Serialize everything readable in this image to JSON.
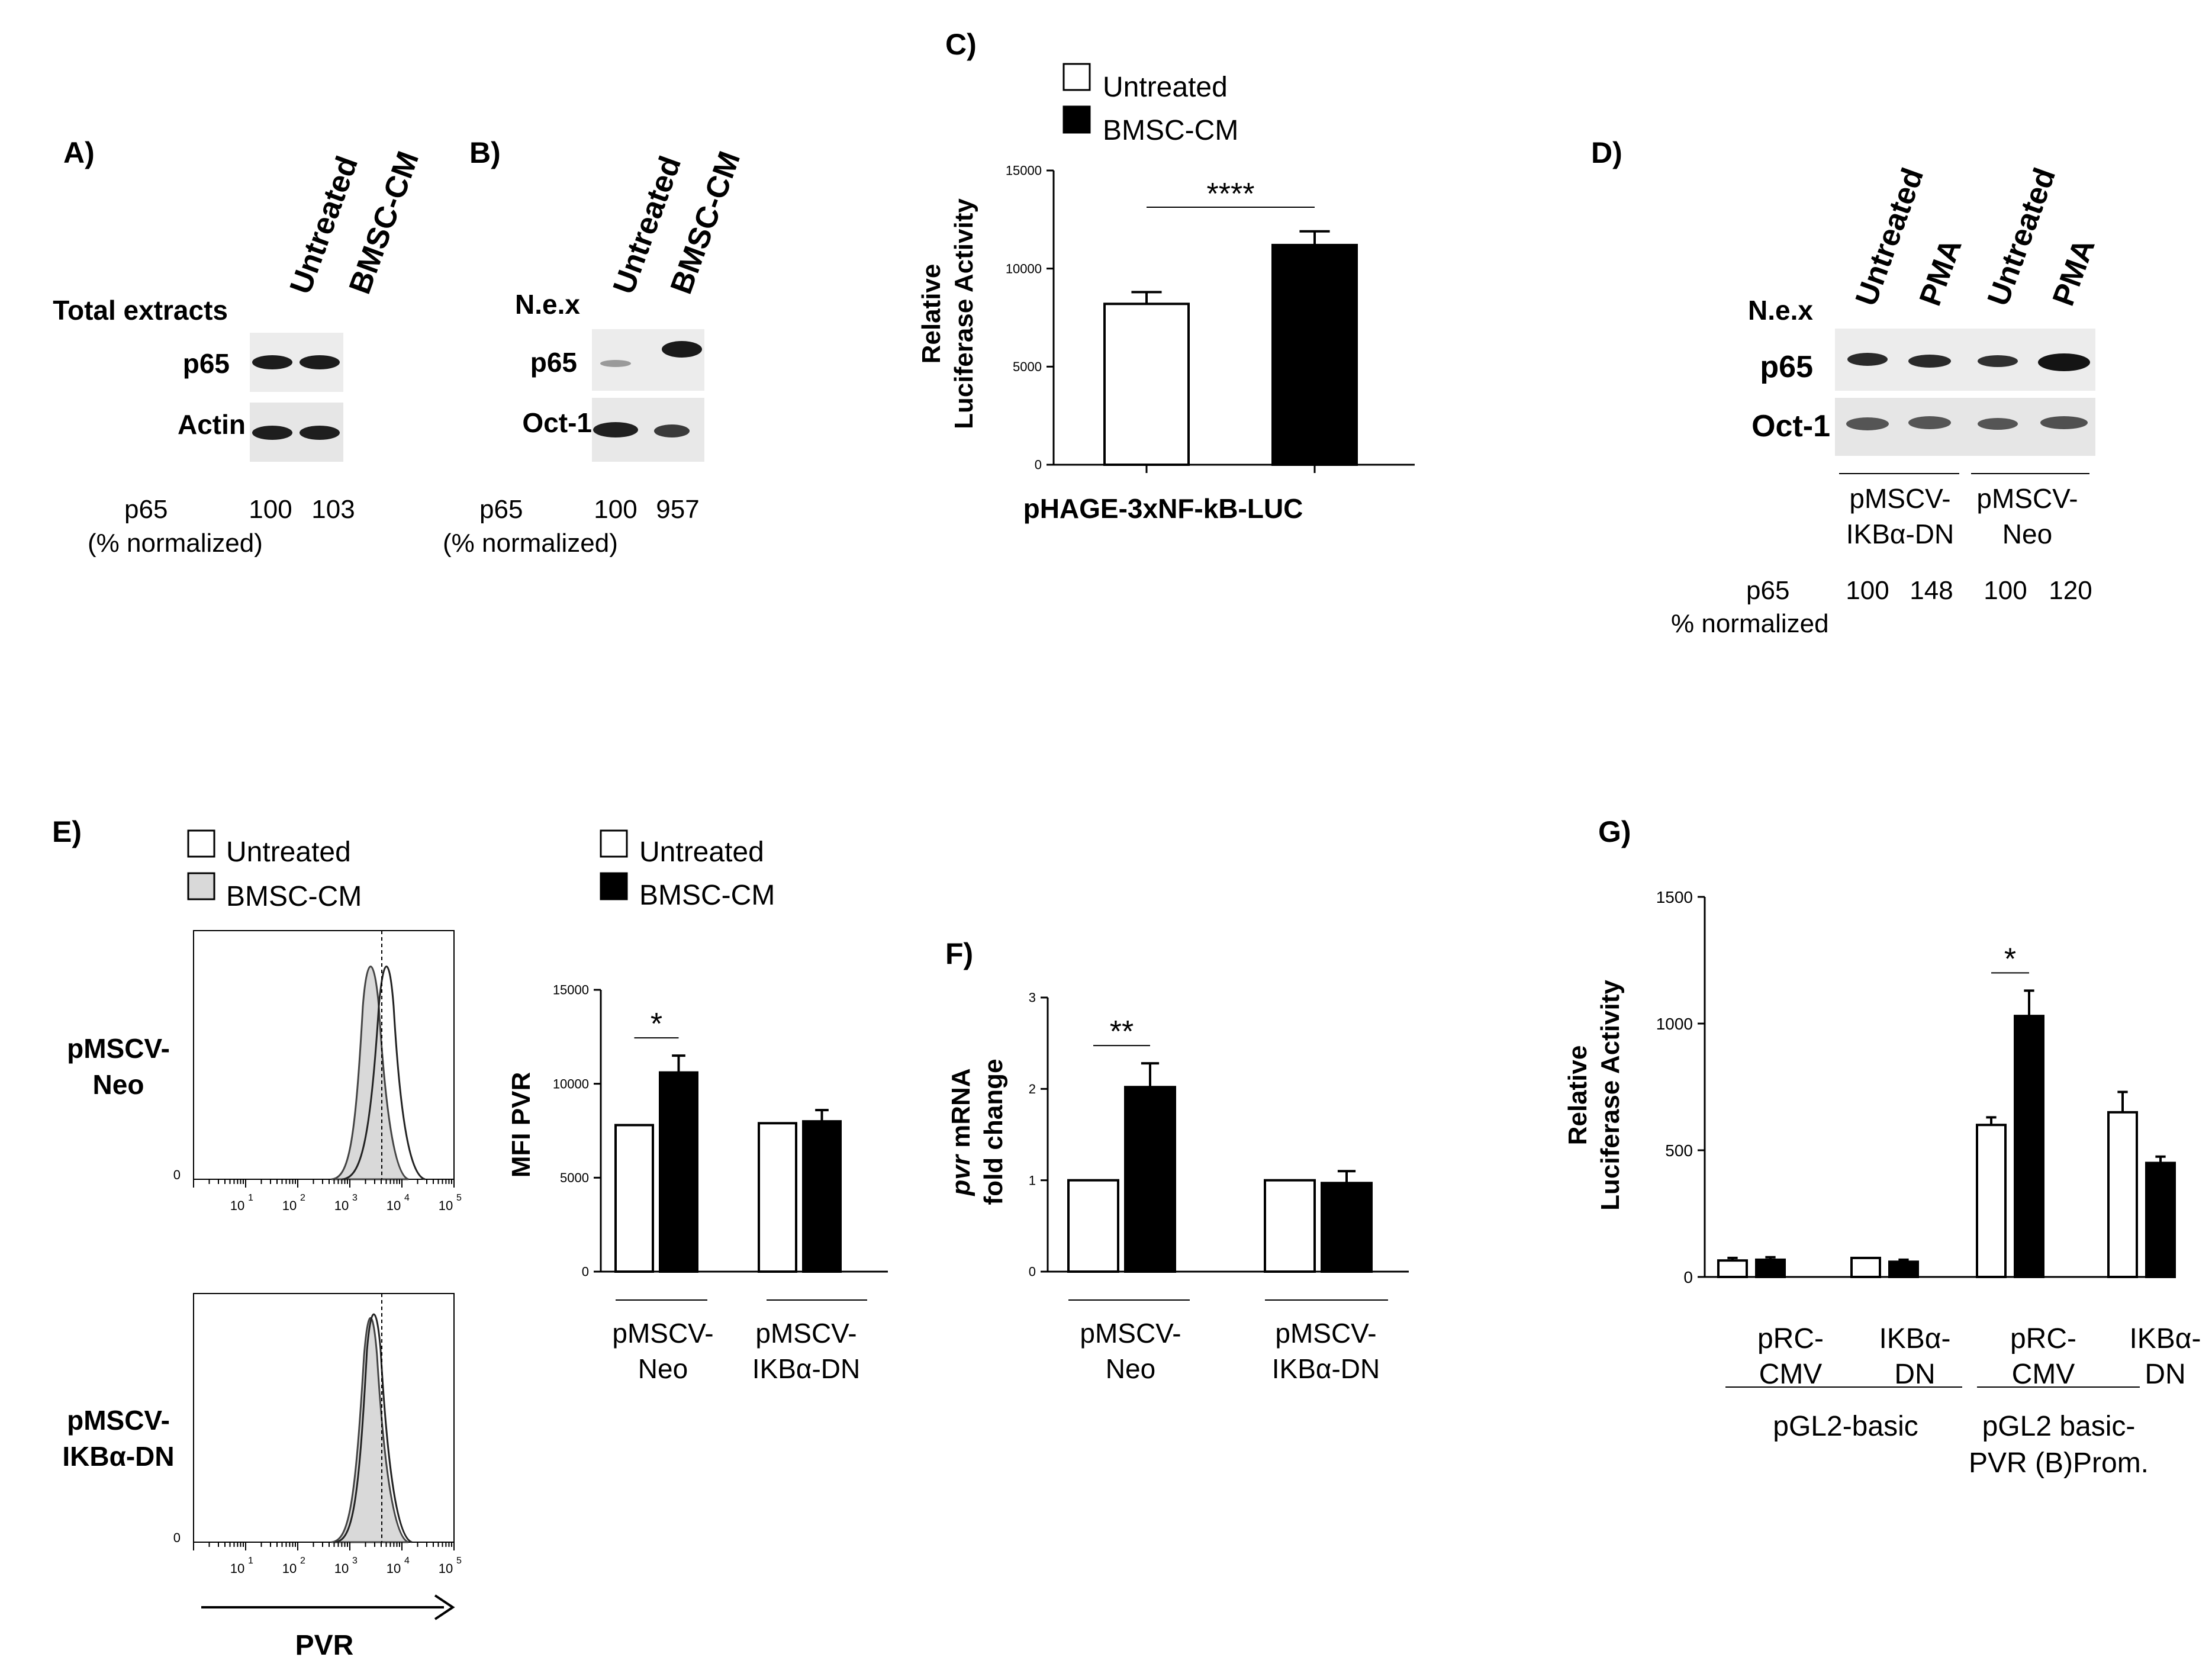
{
  "panels": {
    "A": {
      "letter": "A)",
      "header": "Total extracts",
      "lanes": [
        "Untreated",
        "BMSC-CM"
      ],
      "rows": [
        "p65",
        "Actin"
      ],
      "quant_label": "p65",
      "quant_sub": "(% normalized)",
      "quant_values": [
        "100",
        "103"
      ]
    },
    "B": {
      "letter": "B)",
      "header": "N.e.x",
      "lanes": [
        "Untreated",
        "BMSC-CM"
      ],
      "rows": [
        "p65",
        "Oct-1"
      ],
      "quant_label": "p65",
      "quant_sub": "(% normalized)",
      "quant_values": [
        "100",
        "957"
      ]
    },
    "C": {
      "letter": "C)"
    },
    "D": {
      "letter": "D)",
      "header": "N.e.x",
      "lanes": [
        "Untreated",
        "PMA",
        "Untreated",
        "PMA"
      ],
      "rows": [
        "p65",
        "Oct-1"
      ],
      "groups": [
        {
          "line1": "pMSCV-",
          "line2": "IKBα-DN"
        },
        {
          "line1": "pMSCV-",
          "line2": "Neo"
        }
      ],
      "quant_label": "p65",
      "quant_sub": "% normalized",
      "quant_values": [
        "100",
        "148",
        "100",
        "120"
      ]
    },
    "E": {
      "letter": "E)",
      "hist_legend": [
        "Untreated",
        "BMSC-CM"
      ],
      "hist_rows": [
        {
          "line1": "pMSCV-",
          "line2": "Neo"
        },
        {
          "line1": "pMSCV-",
          "line2": "IKBα-DN"
        }
      ],
      "hist_x_ticks": [
        "0",
        "1",
        "2",
        "3",
        "4",
        "5"
      ],
      "hist_x_base": "10",
      "hist_y_zero": "0",
      "hist_xlabel": "PVR"
    },
    "F": {
      "letter": "F)"
    },
    "G": {
      "letter": "G)"
    }
  },
  "colors": {
    "bar_untreated": "#ffffff",
    "bar_bmsc": "#000000",
    "hist_fill": "#d9d9d9"
  },
  "chart_data": [
    {
      "panel": "C",
      "type": "bar",
      "legend": [
        "Untreated",
        "BMSC-CM"
      ],
      "ylabel": [
        "Relative",
        "Luciferase Activity"
      ],
      "ylim": [
        0,
        15000
      ],
      "yticks": [
        0,
        5000,
        10000,
        15000
      ],
      "categories": [
        "Untreated",
        "BMSC-CM"
      ],
      "values": [
        8200,
        11200
      ],
      "errors": [
        600,
        700
      ],
      "xlabel": "pHAGE-3xNF-kB-LUC",
      "significance": "****"
    },
    {
      "panel": "E2",
      "type": "bar",
      "legend": [
        "Untreated",
        "BMSC-CM"
      ],
      "ylabel": "MFI  PVR",
      "ylim": [
        0,
        15000
      ],
      "yticks": [
        0,
        5000,
        10000,
        15000
      ],
      "groups": [
        {
          "line1": "pMSCV-",
          "line2": "Neo"
        },
        {
          "line1": "pMSCV-",
          "line2": "IKBα-DN"
        }
      ],
      "series": [
        {
          "name": "Untreated",
          "values": [
            7800,
            7900
          ],
          "errors": [
            0,
            0
          ]
        },
        {
          "name": "BMSC-CM",
          "values": [
            10600,
            8000
          ],
          "errors": [
            900,
            600
          ]
        }
      ],
      "significance": [
        "*",
        ""
      ]
    },
    {
      "panel": "F",
      "type": "bar",
      "ylabel_italic": "pvr",
      "ylabel_rest": " mRNA",
      "ylabel2": "fold change",
      "ylim": [
        0,
        3
      ],
      "yticks": [
        0,
        1,
        2,
        3
      ],
      "groups": [
        {
          "line1": "pMSCV-",
          "line2": "Neo"
        },
        {
          "line1": "pMSCV-",
          "line2": "IKBα-DN"
        }
      ],
      "series": [
        {
          "name": "Untreated",
          "values": [
            1,
            1
          ],
          "errors": [
            0,
            0
          ]
        },
        {
          "name": "BMSC-CM",
          "values": [
            2.02,
            0.97
          ],
          "errors": [
            0.26,
            0.13
          ]
        }
      ],
      "significance": [
        "**",
        ""
      ]
    },
    {
      "panel": "G",
      "type": "bar",
      "ylabel": [
        "Relative",
        "Luciferase Activity"
      ],
      "ylim": [
        0,
        1500
      ],
      "yticks": [
        0,
        500,
        1000,
        1500
      ],
      "groups": [
        {
          "line1": "pRC-",
          "line2": "CMV"
        },
        {
          "line1": "IKBα-",
          "line2": "DN"
        },
        {
          "line1": "pRC-",
          "line2": "CMV"
        },
        {
          "line1": "IKBα-",
          "line2": "DN"
        }
      ],
      "series": [
        {
          "name": "Untreated",
          "values": [
            65,
            75,
            600,
            650
          ],
          "errors": [
            10,
            0,
            30,
            80
          ]
        },
        {
          "name": "BMSC-CM",
          "values": [
            68,
            60,
            1030,
            450
          ],
          "errors": [
            10,
            8,
            100,
            25
          ]
        }
      ],
      "supergroups": [
        {
          "line1": "pGL2-basic",
          "line2": ""
        },
        {
          "line1": "pGL2 basic-",
          "line2": "PVR (B)Prom."
        }
      ],
      "significance": [
        "",
        "",
        "*",
        ""
      ]
    }
  ]
}
